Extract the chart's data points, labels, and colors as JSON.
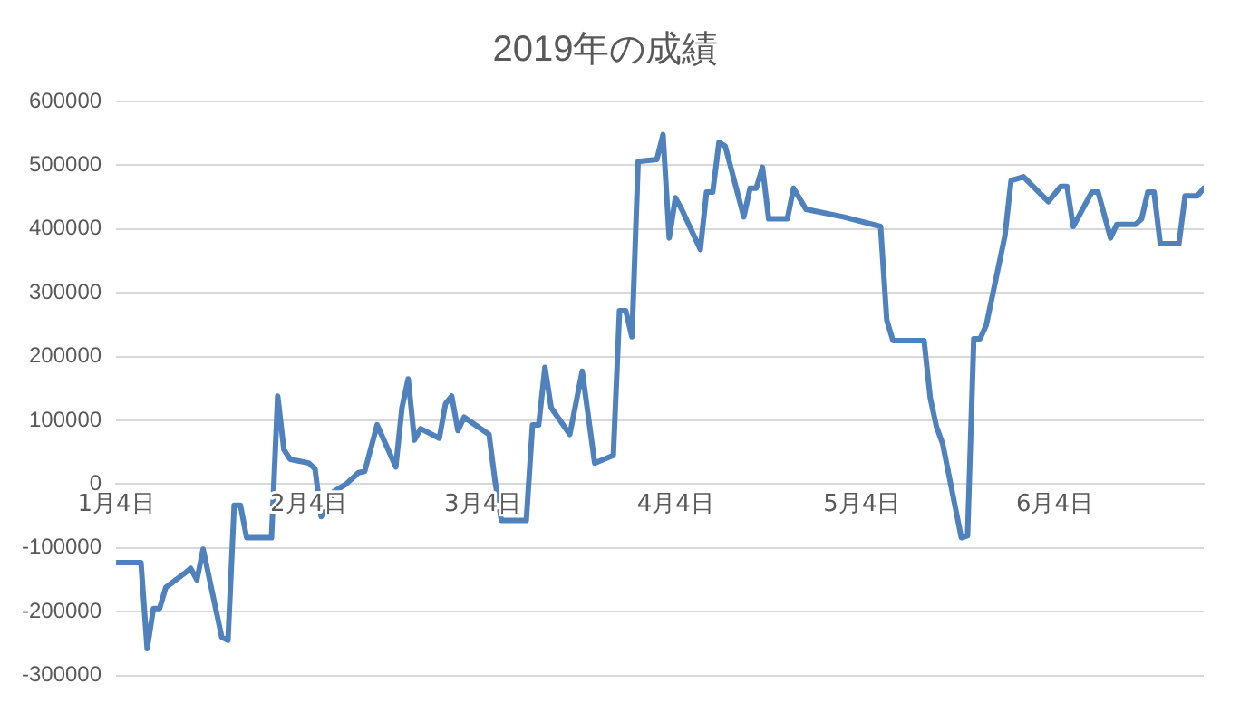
{
  "chart_data": {
    "type": "line",
    "title": "2019年の成績",
    "x": [
      "--01-04",
      "--01-08",
      "--01-09",
      "--01-10",
      "--01-11",
      "--01-12",
      "--01-15",
      "--01-16",
      "--01-17",
      "--01-18",
      "--01-21",
      "--01-22",
      "--01-23",
      "--01-24",
      "--01-25",
      "--01-29",
      "--01-30",
      "--01-31",
      "--02-01",
      "--02-04",
      "--02-05",
      "--02-06",
      "--02-08",
      "--02-10",
      "--02-12",
      "--02-13",
      "--02-15",
      "--02-18",
      "--02-19",
      "--02-20",
      "--02-21",
      "--02-22",
      "--02-25",
      "--02-26",
      "--02-27",
      "--02-28",
      "--03-01",
      "--03-05",
      "--03-06",
      "--03-07",
      "--03-11",
      "--03-12",
      "--03-13",
      "--03-14",
      "--03-15",
      "--03-18",
      "--03-20",
      "--03-22",
      "--03-25",
      "--03-26",
      "--03-27",
      "--03-28",
      "--03-29",
      "--04-01",
      "--04-02",
      "--04-03",
      "--04-04",
      "--04-05",
      "--04-08",
      "--04-09",
      "--04-10",
      "--04-11",
      "--04-12",
      "--04-15",
      "--04-16",
      "--04-17",
      "--04-18",
      "--04-19",
      "--04-22",
      "--04-23",
      "--04-25",
      "--05-01",
      "--05-07",
      "--05-08",
      "--05-09",
      "--05-14",
      "--05-15",
      "--05-16",
      "--05-17",
      "--05-20",
      "--05-21",
      "--05-22",
      "--05-23",
      "--05-24",
      "--05-27",
      "--05-28",
      "--05-30",
      "--06-03",
      "--06-05",
      "--06-06",
      "--06-07",
      "--06-10",
      "--06-11",
      "--06-13",
      "--06-14",
      "--06-17",
      "--06-18",
      "--06-19",
      "--06-20",
      "--06-21",
      "--06-24",
      "--06-25",
      "--06-27",
      "--06-28"
    ],
    "series": [
      {
        "color": "#4f81bd",
        "values": [
          -123000,
          -123000,
          -258000,
          -195000,
          -195000,
          -162000,
          -140000,
          -132000,
          -150000,
          -102000,
          -240000,
          -245000,
          -33000,
          -33000,
          -84000,
          -84000,
          138000,
          54000,
          39000,
          33000,
          24000,
          -51000,
          -12000,
          0,
          18000,
          20000,
          93000,
          27000,
          120000,
          165000,
          69000,
          87000,
          72000,
          126000,
          138000,
          84000,
          105000,
          78000,
          3000,
          -57000,
          -57000,
          93000,
          93000,
          183000,
          120000,
          78000,
          177000,
          33000,
          45000,
          272000,
          272000,
          231000,
          506000,
          509000,
          548000,
          386000,
          449000,
          431000,
          368000,
          458000,
          458000,
          536000,
          530000,
          419000,
          464000,
          464000,
          497000,
          416000,
          416000,
          464000,
          431000,
          419000,
          404000,
          257000,
          225000,
          225000,
          135000,
          90000,
          63000,
          -84000,
          -81000,
          228000,
          228000,
          249000,
          389000,
          476000,
          482000,
          443000,
          467000,
          467000,
          404000,
          458000,
          458000,
          386000,
          407000,
          407000,
          416000,
          458000,
          458000,
          377000,
          377000,
          452000,
          452000,
          464000
        ]
      }
    ],
    "xlim": [
      "--01-04",
      "--06-28"
    ],
    "xticks": [
      {
        "value": "--01-04",
        "label": "1月4日"
      },
      {
        "value": "--02-04",
        "label": "2月4日"
      },
      {
        "value": "--03-04",
        "label": "3月4日"
      },
      {
        "value": "--04-04",
        "label": "4月4日"
      },
      {
        "value": "--05-04",
        "label": "5月4日"
      },
      {
        "value": "--06-04",
        "label": "6月4日"
      }
    ],
    "ylim": [
      -300000,
      600000
    ],
    "yticks": [
      -300000,
      -200000,
      -100000,
      0,
      100000,
      200000,
      300000,
      400000,
      500000,
      600000
    ],
    "grid": "y",
    "legend": false,
    "marker": "none",
    "line_style": "solid"
  }
}
